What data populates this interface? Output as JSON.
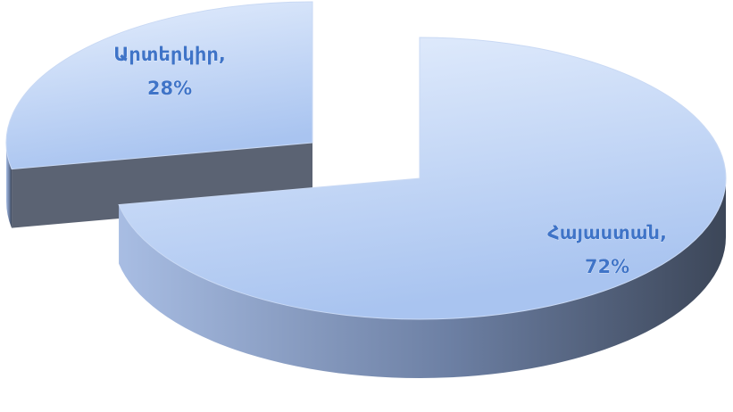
{
  "chart_data": {
    "type": "pie3d",
    "categories": [
      "Արտերկիր,",
      "Հայաստան,"
    ],
    "values": [
      28,
      72
    ],
    "value_labels": [
      "28%",
      "72%"
    ],
    "color": "#a9c4f0"
  }
}
